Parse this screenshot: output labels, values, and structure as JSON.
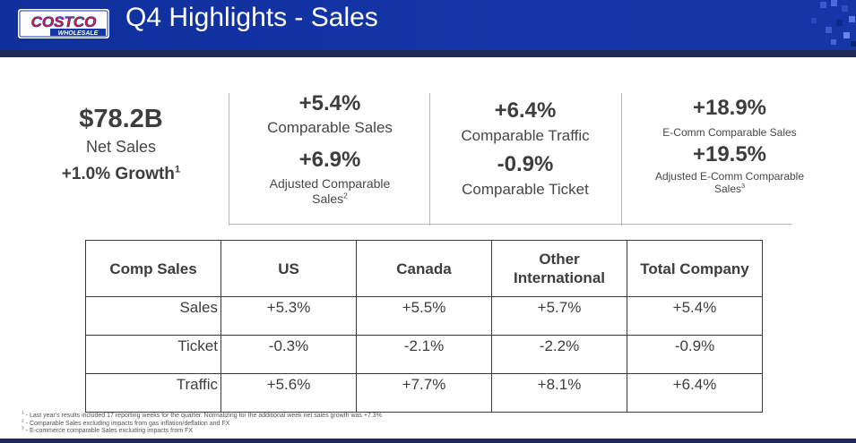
{
  "header": {
    "logo_top": "COSTCO",
    "logo_bottom": "WHOLESALE",
    "title": "Q4 Highlights - Sales",
    "brand_blue": "#1436a8",
    "brand_red": "#e31837"
  },
  "kpis": {
    "net_sales": {
      "value": "$78.2B",
      "label": "Net Sales",
      "growth": "+1.0% Growth",
      "growth_note": "1"
    },
    "comparable": {
      "value1": "+5.4%",
      "label1": "Comparable Sales",
      "value2": "+6.9%",
      "label2_line1": "Adjusted Comparable",
      "label2_line2": "Sales",
      "label2_note": "2"
    },
    "traffic": {
      "value1": "+6.4%",
      "label1": "Comparable Traffic",
      "value2": "-0.9%",
      "label2": "Comparable Ticket"
    },
    "ecomm": {
      "value1": "+18.9%",
      "label1": "E-Comm Comparable Sales",
      "value2": "+19.5%",
      "label2_line1": "Adjusted E-Comm Comparable",
      "label2_line2": "Sales",
      "label2_note": "3"
    }
  },
  "table": {
    "headers": [
      "Comp Sales",
      "US",
      "Canada",
      "Other International",
      "Total Company"
    ],
    "header_other_line1": "Other",
    "header_other_line2": "International",
    "rows": [
      {
        "label": "Sales",
        "us": "+5.3%",
        "canada": "+5.5%",
        "other": "+5.7%",
        "total": "+5.4%"
      },
      {
        "label": "Ticket",
        "us": "-0.3%",
        "canada": "-2.1%",
        "other": "-2.2%",
        "total": "-0.9%"
      },
      {
        "label": "Traffic",
        "us": "+5.6%",
        "canada": "+7.7%",
        "other": "+8.1%",
        "total": "+6.4%"
      }
    ]
  },
  "footnotes": [
    {
      "mark": "1",
      "text": " - Last year's results included 17 reporting weeks for the quarter. Normalizing for the additional week net sales growth was +7.3%"
    },
    {
      "mark": "2",
      "text": " - Comparable Sales excluding impacts from gas inflation/deflation and FX"
    },
    {
      "mark": "3",
      "text": " - E-commerce comparable Sales excluding impacts from FX"
    }
  ]
}
